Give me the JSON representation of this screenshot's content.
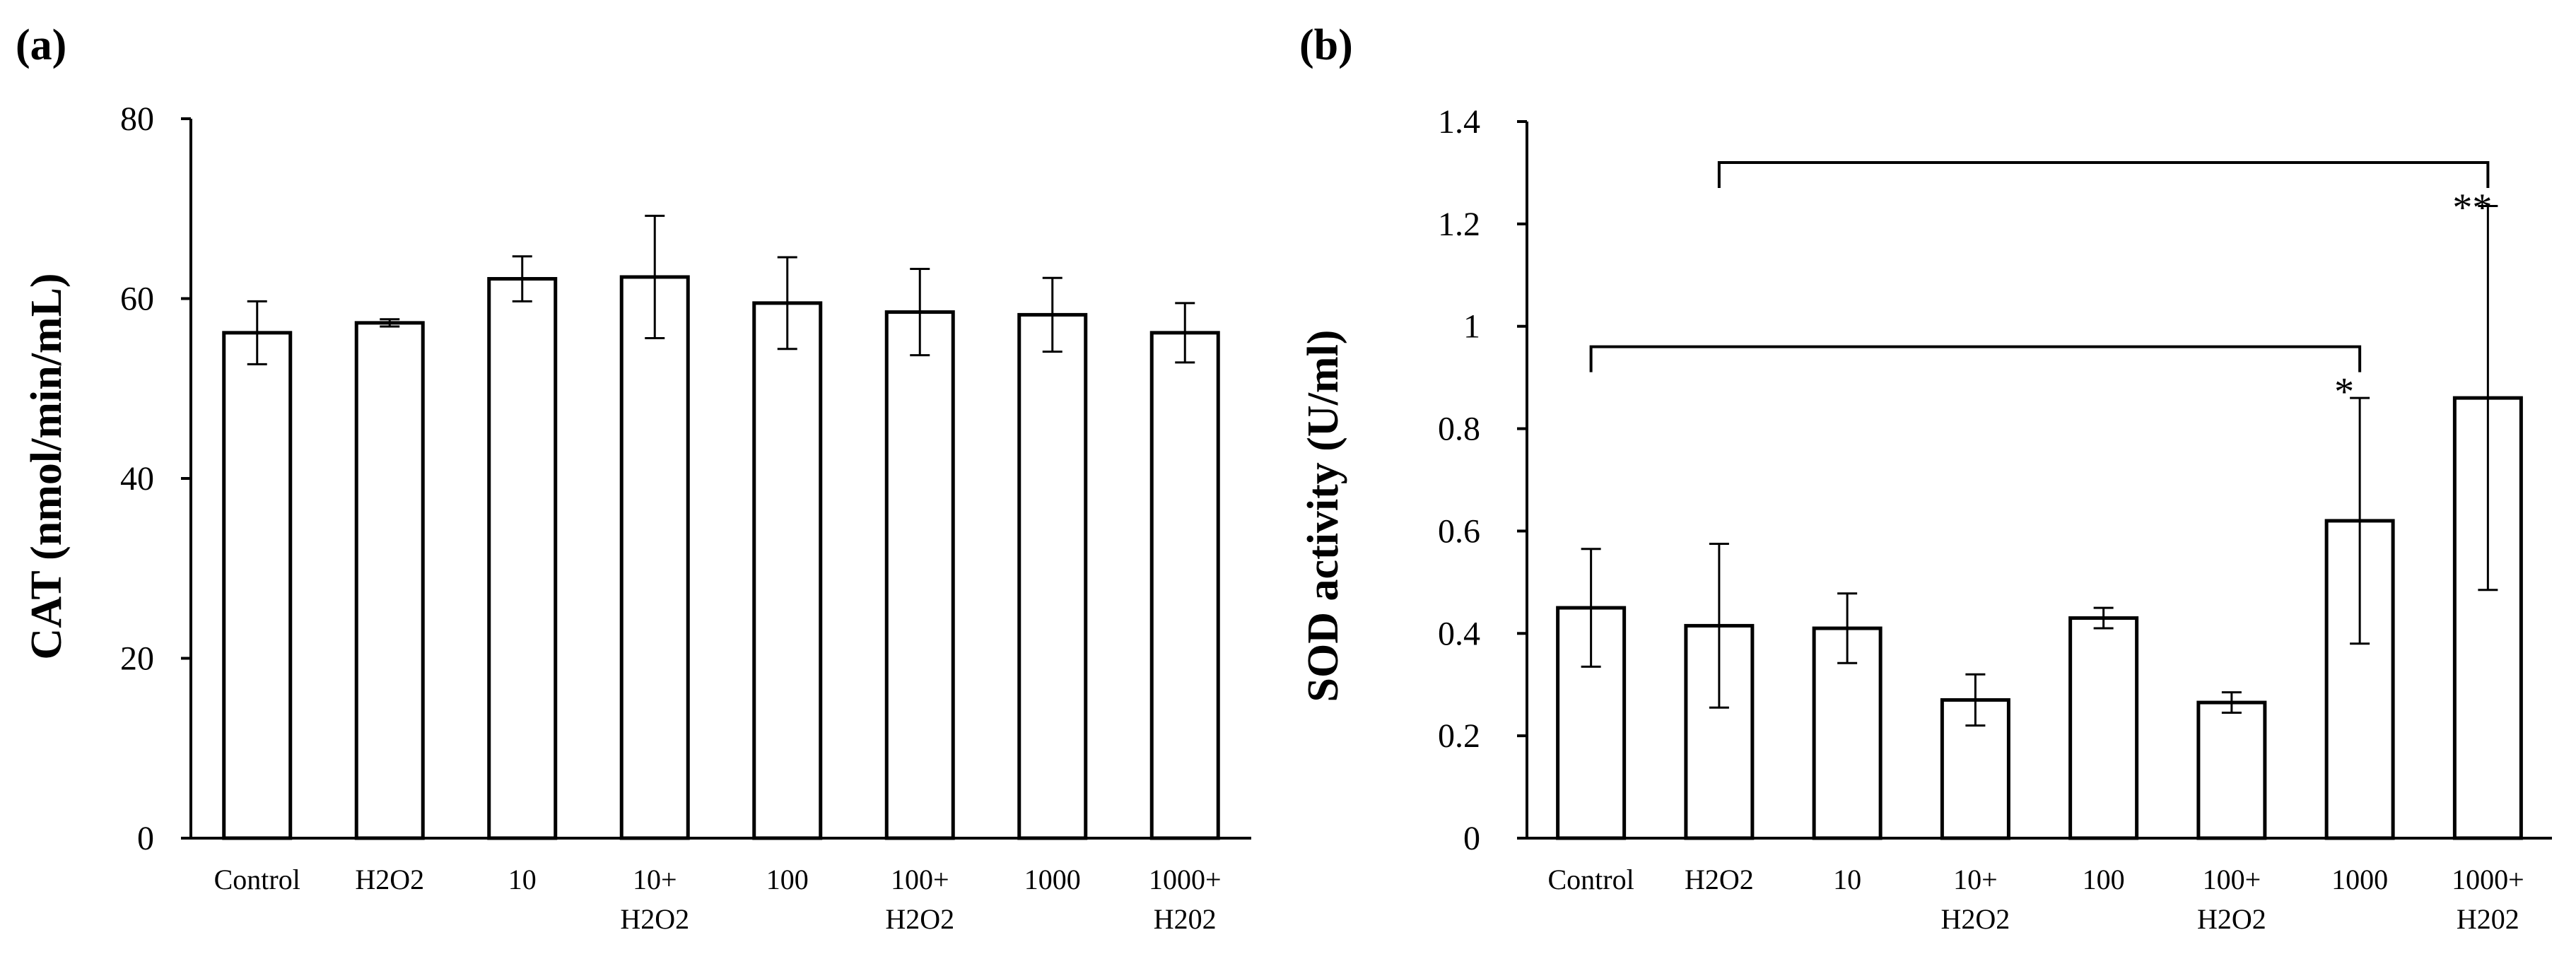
{
  "chart_data": [
    {
      "type": "bar",
      "panel_label": "(a)",
      "title": "",
      "xlabel": "",
      "ylabel": "CAT (nmol/min/mL)",
      "ylim": [
        0,
        80
      ],
      "yticks": [
        "0",
        "20",
        "40",
        "60",
        "80"
      ],
      "grid": false,
      "categories": [
        [
          "Control"
        ],
        [
          "H2O2"
        ],
        [
          "10"
        ],
        [
          "10+",
          "H2O2"
        ],
        [
          "100"
        ],
        [
          "100+",
          "H2O2"
        ],
        [
          "1000"
        ],
        [
          "1000+",
          "H202"
        ]
      ],
      "values": [
        56.2,
        57.3,
        62.2,
        62.4,
        59.5,
        58.5,
        58.2,
        56.2
      ],
      "errors": [
        3.5,
        0.4,
        2.5,
        6.8,
        5.1,
        4.8,
        4.1,
        3.3
      ],
      "significance": []
    },
    {
      "type": "bar",
      "panel_label": "(b)",
      "title": "",
      "xlabel": "",
      "ylabel": "SOD activity (U/ml)",
      "ylim": [
        0,
        1.4
      ],
      "yticks": [
        "0",
        "0.2",
        "0.4",
        "0.6",
        "0.8",
        "1",
        "1.2",
        "1.4"
      ],
      "grid": false,
      "categories": [
        [
          "Control"
        ],
        [
          "H2O2"
        ],
        [
          "10"
        ],
        [
          "10+",
          "H2O2"
        ],
        [
          "100"
        ],
        [
          "100+",
          "H2O2"
        ],
        [
          "1000"
        ],
        [
          "1000+",
          "H202"
        ]
      ],
      "values": [
        0.45,
        0.415,
        0.41,
        0.27,
        0.43,
        0.265,
        0.62,
        0.86
      ],
      "errors": [
        0.115,
        0.16,
        0.068,
        0.05,
        0.02,
        0.02,
        0.24,
        0.375
      ],
      "significance": [
        {
          "from": 0,
          "to": 6,
          "y": 0.96,
          "label": "*"
        },
        {
          "from": 1,
          "to": 7,
          "y": 1.32,
          "label": "**"
        }
      ]
    }
  ]
}
